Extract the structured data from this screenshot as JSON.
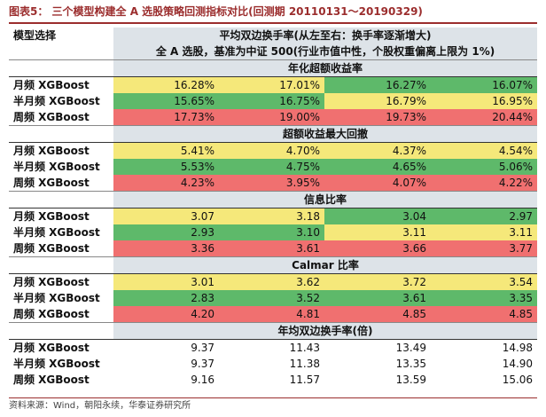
{
  "title": "图表5：  三个模型构建全 A 选股策略回测指标对比(回测期 20110131～20190329)",
  "header": {
    "left": "模型选择",
    "right": "平均双边换手率(从左至右：换手率逐渐增大)",
    "universe": "全 A 选股，基准为中证 500(行业市值中性，个股权重偏离上限为 1%)"
  },
  "sections": [
    {
      "label": "年化超额收益率",
      "rows": [
        {
          "model": "月频 XGBoost",
          "values": [
            "16.28%",
            "17.01%",
            "16.27%",
            "16.07%"
          ],
          "colors": [
            "yellow",
            "yellow",
            "green",
            "green"
          ]
        },
        {
          "model": "半月频 XGBoost",
          "values": [
            "15.65%",
            "16.75%",
            "16.79%",
            "16.95%"
          ],
          "colors": [
            "green",
            "green",
            "yellow",
            "yellow"
          ]
        },
        {
          "model": "周频 XGBoost",
          "values": [
            "17.73%",
            "19.00%",
            "19.73%",
            "20.44%"
          ],
          "colors": [
            "red",
            "red",
            "red",
            "red"
          ]
        }
      ]
    },
    {
      "label": "超额收益最大回撤",
      "rows": [
        {
          "model": "月频 XGBoost",
          "values": [
            "5.41%",
            "4.70%",
            "4.37%",
            "4.54%"
          ],
          "colors": [
            "yellow",
            "yellow",
            "yellow",
            "yellow"
          ]
        },
        {
          "model": "半月频 XGBoost",
          "values": [
            "5.53%",
            "4.75%",
            "4.65%",
            "5.06%"
          ],
          "colors": [
            "green",
            "green",
            "green",
            "green"
          ]
        },
        {
          "model": "周频 XGBoost",
          "values": [
            "4.23%",
            "3.95%",
            "4.07%",
            "4.22%"
          ],
          "colors": [
            "red",
            "red",
            "red",
            "red"
          ]
        }
      ]
    },
    {
      "label": "信息比率",
      "rows": [
        {
          "model": "月频 XGBoost",
          "values": [
            "3.07",
            "3.18",
            "3.04",
            "2.97"
          ],
          "colors": [
            "yellow",
            "yellow",
            "green",
            "green"
          ]
        },
        {
          "model": "半月频 XGBoost",
          "values": [
            "2.93",
            "3.10",
            "3.11",
            "3.11"
          ],
          "colors": [
            "green",
            "green",
            "yellow",
            "yellow"
          ]
        },
        {
          "model": "周频 XGBoost",
          "values": [
            "3.36",
            "3.61",
            "3.66",
            "3.77"
          ],
          "colors": [
            "red",
            "red",
            "red",
            "red"
          ]
        }
      ]
    },
    {
      "label": "Calmar 比率",
      "rows": [
        {
          "model": "月频 XGBoost",
          "values": [
            "3.01",
            "3.62",
            "3.72",
            "3.54"
          ],
          "colors": [
            "yellow",
            "yellow",
            "yellow",
            "yellow"
          ]
        },
        {
          "model": "半月频 XGBoost",
          "values": [
            "2.83",
            "3.52",
            "3.61",
            "3.35"
          ],
          "colors": [
            "green",
            "green",
            "green",
            "green"
          ]
        },
        {
          "model": "周频 XGBoost",
          "values": [
            "4.20",
            "4.81",
            "4.85",
            "4.85"
          ],
          "colors": [
            "red",
            "red",
            "red",
            "red"
          ]
        }
      ]
    },
    {
      "label": "年均双边换手率(倍)",
      "rows": [
        {
          "model": "月频 XGBoost",
          "values": [
            "9.37",
            "11.43",
            "13.49",
            "14.98"
          ],
          "colors": [
            "white",
            "white",
            "white",
            "white"
          ]
        },
        {
          "model": "半月频 XGBoost",
          "values": [
            "9.37",
            "11.38",
            "13.35",
            "14.90"
          ],
          "colors": [
            "white",
            "white",
            "white",
            "white"
          ]
        },
        {
          "model": "周频 XGBoost",
          "values": [
            "9.16",
            "11.57",
            "13.59",
            "15.06"
          ],
          "colors": [
            "white",
            "white",
            "white",
            "white"
          ]
        }
      ]
    }
  ],
  "source": "资料来源：Wind，朝阳永续，华泰证券研究所"
}
